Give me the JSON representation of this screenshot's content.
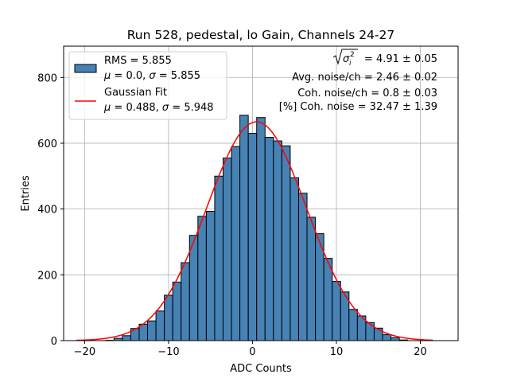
{
  "chart_data": {
    "type": "bar",
    "title": "Run 528, pedestal, lo Gain, Channels 24-27",
    "xlabel": "ADC Counts",
    "ylabel": "Entries",
    "xlim": [
      -22.5,
      24.5
    ],
    "ylim": [
      0,
      895
    ],
    "xticks": [
      -20,
      -10,
      0,
      10,
      20
    ],
    "xtick_labels": [
      "−20",
      "−10",
      "0",
      "10",
      "20"
    ],
    "yticks": [
      0,
      200,
      400,
      600,
      800
    ],
    "grid": true,
    "bar_color": "#4682b4",
    "bin_width": 1,
    "bins": [
      {
        "x": -17,
        "y": 1
      },
      {
        "x": -16,
        "y": 7
      },
      {
        "x": -15,
        "y": 15
      },
      {
        "x": -14,
        "y": 37
      },
      {
        "x": -13,
        "y": 50
      },
      {
        "x": -12,
        "y": 60
      },
      {
        "x": -11,
        "y": 90
      },
      {
        "x": -10,
        "y": 138
      },
      {
        "x": -9,
        "y": 178
      },
      {
        "x": -8,
        "y": 237
      },
      {
        "x": -7,
        "y": 320
      },
      {
        "x": -6,
        "y": 378
      },
      {
        "x": -5,
        "y": 393
      },
      {
        "x": -4,
        "y": 500
      },
      {
        "x": -3,
        "y": 555
      },
      {
        "x": -2,
        "y": 590
      },
      {
        "x": -1,
        "y": 685
      },
      {
        "x": 0,
        "y": 630
      },
      {
        "x": 1,
        "y": 678
      },
      {
        "x": 2,
        "y": 618
      },
      {
        "x": 3,
        "y": 607
      },
      {
        "x": 4,
        "y": 592
      },
      {
        "x": 5,
        "y": 495
      },
      {
        "x": 6,
        "y": 448
      },
      {
        "x": 7,
        "y": 375
      },
      {
        "x": 8,
        "y": 325
      },
      {
        "x": 9,
        "y": 250
      },
      {
        "x": 10,
        "y": 180
      },
      {
        "x": 11,
        "y": 148
      },
      {
        "x": 12,
        "y": 95
      },
      {
        "x": 13,
        "y": 75
      },
      {
        "x": 14,
        "y": 55
      },
      {
        "x": 15,
        "y": 38
      },
      {
        "x": 16,
        "y": 18
      },
      {
        "x": 17,
        "y": 9
      },
      {
        "x": 18,
        "y": 2
      }
    ],
    "fit": {
      "name": "Gaussian Fit",
      "mu": 0.488,
      "sigma": 5.948,
      "amplitude": 665,
      "range": [
        -21,
        21.5
      ],
      "color": "#ff0000"
    }
  },
  "legend": {
    "hist_label_line1": "RMS = 5.855",
    "hist_label_line2_mu": "μ",
    "hist_label_line2_mid": " = 0.0, ",
    "hist_label_line2_sigma": "σ",
    "hist_label_line2_end": " = 5.855",
    "fit_label_line1": "Gaussian Fit",
    "fit_label_line2_mu": "μ",
    "fit_label_line2_mid": " = 0.488, ",
    "fit_label_line2_sigma": "σ",
    "fit_label_line2_end": " = 5.948"
  },
  "stats": {
    "line1_value": " = 4.91 ± 0.05",
    "line1_symbol": "σ",
    "line1_sup": "2",
    "line1_sub": "i",
    "line2": "Avg. noise/ch = 2.46 ± 0.02",
    "line3": "Coh. noise/ch = 0.8 ± 0.03",
    "line4": "[%] Coh. noise = 32.47 ± 1.39"
  }
}
